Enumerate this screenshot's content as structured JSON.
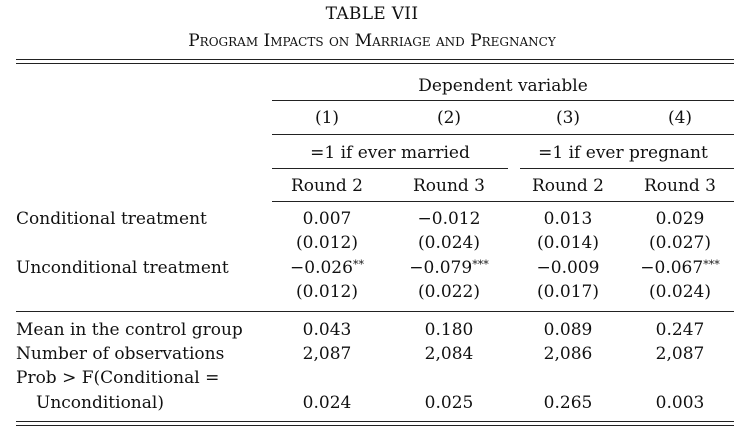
{
  "table": {
    "title": "TABLE VII",
    "subtitle": "Program Impacts on Marriage and Pregnancy",
    "dep_var_header": "Dependent variable",
    "columns": [
      "(1)",
      "(2)",
      "(3)",
      "(4)"
    ],
    "groups": [
      "=1 if ever married",
      "=1 if ever pregnant"
    ],
    "rounds": [
      "Round 2",
      "Round 3",
      "Round 2",
      "Round 3"
    ],
    "rows": [
      {
        "label": "Conditional treatment",
        "coef": [
          "0.007",
          "−0.012",
          "0.013",
          "0.029"
        ],
        "stars": [
          "",
          "",
          "",
          ""
        ],
        "se": [
          "(0.012)",
          "(0.024)",
          "(0.014)",
          "(0.027)"
        ]
      },
      {
        "label": "Unconditional treatment",
        "coef": [
          "−0.026",
          "−0.079",
          "−0.009",
          "−0.067"
        ],
        "stars": [
          "**",
          "***",
          "",
          "***"
        ],
        "se": [
          "(0.012)",
          "(0.022)",
          "(0.017)",
          "(0.024)"
        ]
      }
    ],
    "stats": [
      {
        "label": "Mean in the control group",
        "values": [
          "0.043",
          "0.180",
          "0.089",
          "0.247"
        ]
      },
      {
        "label": "Number of observations",
        "values": [
          "2,087",
          "2,084",
          "2,086",
          "2,087"
        ]
      }
    ],
    "prob": {
      "label_line1": "Prob > F(Conditional =",
      "label_line2": "Unconditional)",
      "values": [
        "0.024",
        "0.025",
        "0.265",
        "0.003"
      ]
    }
  }
}
